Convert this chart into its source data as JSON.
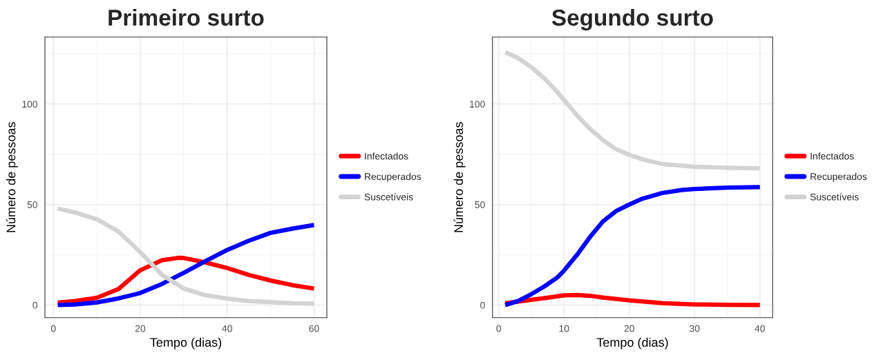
{
  "chart_data": [
    {
      "type": "line",
      "title": "Primeiro surto",
      "xlabel": "Tempo (dias)",
      "ylabel": "Número de pessoas",
      "xlim": [
        -1.95,
        62.95
      ],
      "ylim": [
        -6.3,
        133.3
      ],
      "xticks": [
        0,
        20,
        40,
        60
      ],
      "yticks": [
        0,
        50,
        100
      ],
      "grid": true,
      "legend": "right",
      "series": [
        {
          "name": "Infectados",
          "color": "#ff0000",
          "x": [
            1,
            5,
            10,
            15,
            20,
            25,
            29,
            30,
            35,
            40,
            45,
            50,
            55,
            60
          ],
          "values": [
            1.2,
            2,
            3.6,
            8,
            17.3,
            22.3,
            23.5,
            23.4,
            21.2,
            18.4,
            15,
            12.2,
            9.9,
            8.2
          ]
        },
        {
          "name": "Recuperados",
          "color": "#0000ff",
          "x": [
            1,
            5,
            10,
            15,
            20,
            25,
            30,
            35,
            40,
            45,
            50,
            55,
            60
          ],
          "values": [
            0,
            0.3,
            1.3,
            3.3,
            6,
            10.5,
            16,
            21.8,
            27.4,
            32,
            35.9,
            38,
            39.8
          ]
        },
        {
          "name": "Suscetíveis",
          "color": "#d3d3d3",
          "x": [
            1,
            5,
            10,
            15,
            20,
            25,
            30,
            35,
            40,
            45,
            50,
            55,
            60
          ],
          "values": [
            48,
            46,
            42.7,
            36.5,
            26.3,
            15,
            8.2,
            4.9,
            3.2,
            2,
            1.5,
            0.9,
            0.7
          ]
        }
      ]
    },
    {
      "type": "line",
      "title": "Segundo surto",
      "xlabel": "Tempo (dias)",
      "ylabel": "Número de pessoas",
      "xlim": [
        -0.95,
        41.95
      ],
      "ylim": [
        -6.3,
        133.3
      ],
      "xticks": [
        0,
        10,
        20,
        30,
        40
      ],
      "yticks": [
        0,
        50,
        100
      ],
      "grid": true,
      "legend": "right",
      "series": [
        {
          "name": "Infectados",
          "color": "#ff0000",
          "x": [
            1,
            5,
            8,
            10,
            12,
            14,
            16,
            20,
            25,
            30,
            35,
            40
          ],
          "values": [
            0.9,
            2.6,
            3.9,
            4.8,
            5,
            4.6,
            3.7,
            2.3,
            1,
            0.3,
            0.1,
            0
          ]
        },
        {
          "name": "Recuperados",
          "color": "#0000ff",
          "x": [
            1,
            3,
            5,
            7,
            9,
            10,
            12,
            14,
            16,
            18,
            20,
            22,
            25,
            28,
            30,
            35,
            40
          ],
          "values": [
            0,
            2,
            5.4,
            9.3,
            13.8,
            17.1,
            25,
            33.9,
            41.7,
            46.8,
            50,
            52.9,
            55.7,
            57.2,
            57.7,
            58.4,
            58.7
          ]
        },
        {
          "name": "Suscetíveis",
          "color": "#d3d3d3",
          "x": [
            1,
            3,
            5,
            7,
            9,
            10,
            12,
            14,
            16,
            18,
            20,
            22,
            25,
            30,
            35,
            40
          ],
          "values": [
            125.8,
            122.8,
            118.3,
            112.8,
            106,
            102,
            94.3,
            87.6,
            82,
            77.5,
            74.7,
            72.5,
            70.2,
            68.8,
            68.3,
            68
          ]
        }
      ]
    }
  ]
}
